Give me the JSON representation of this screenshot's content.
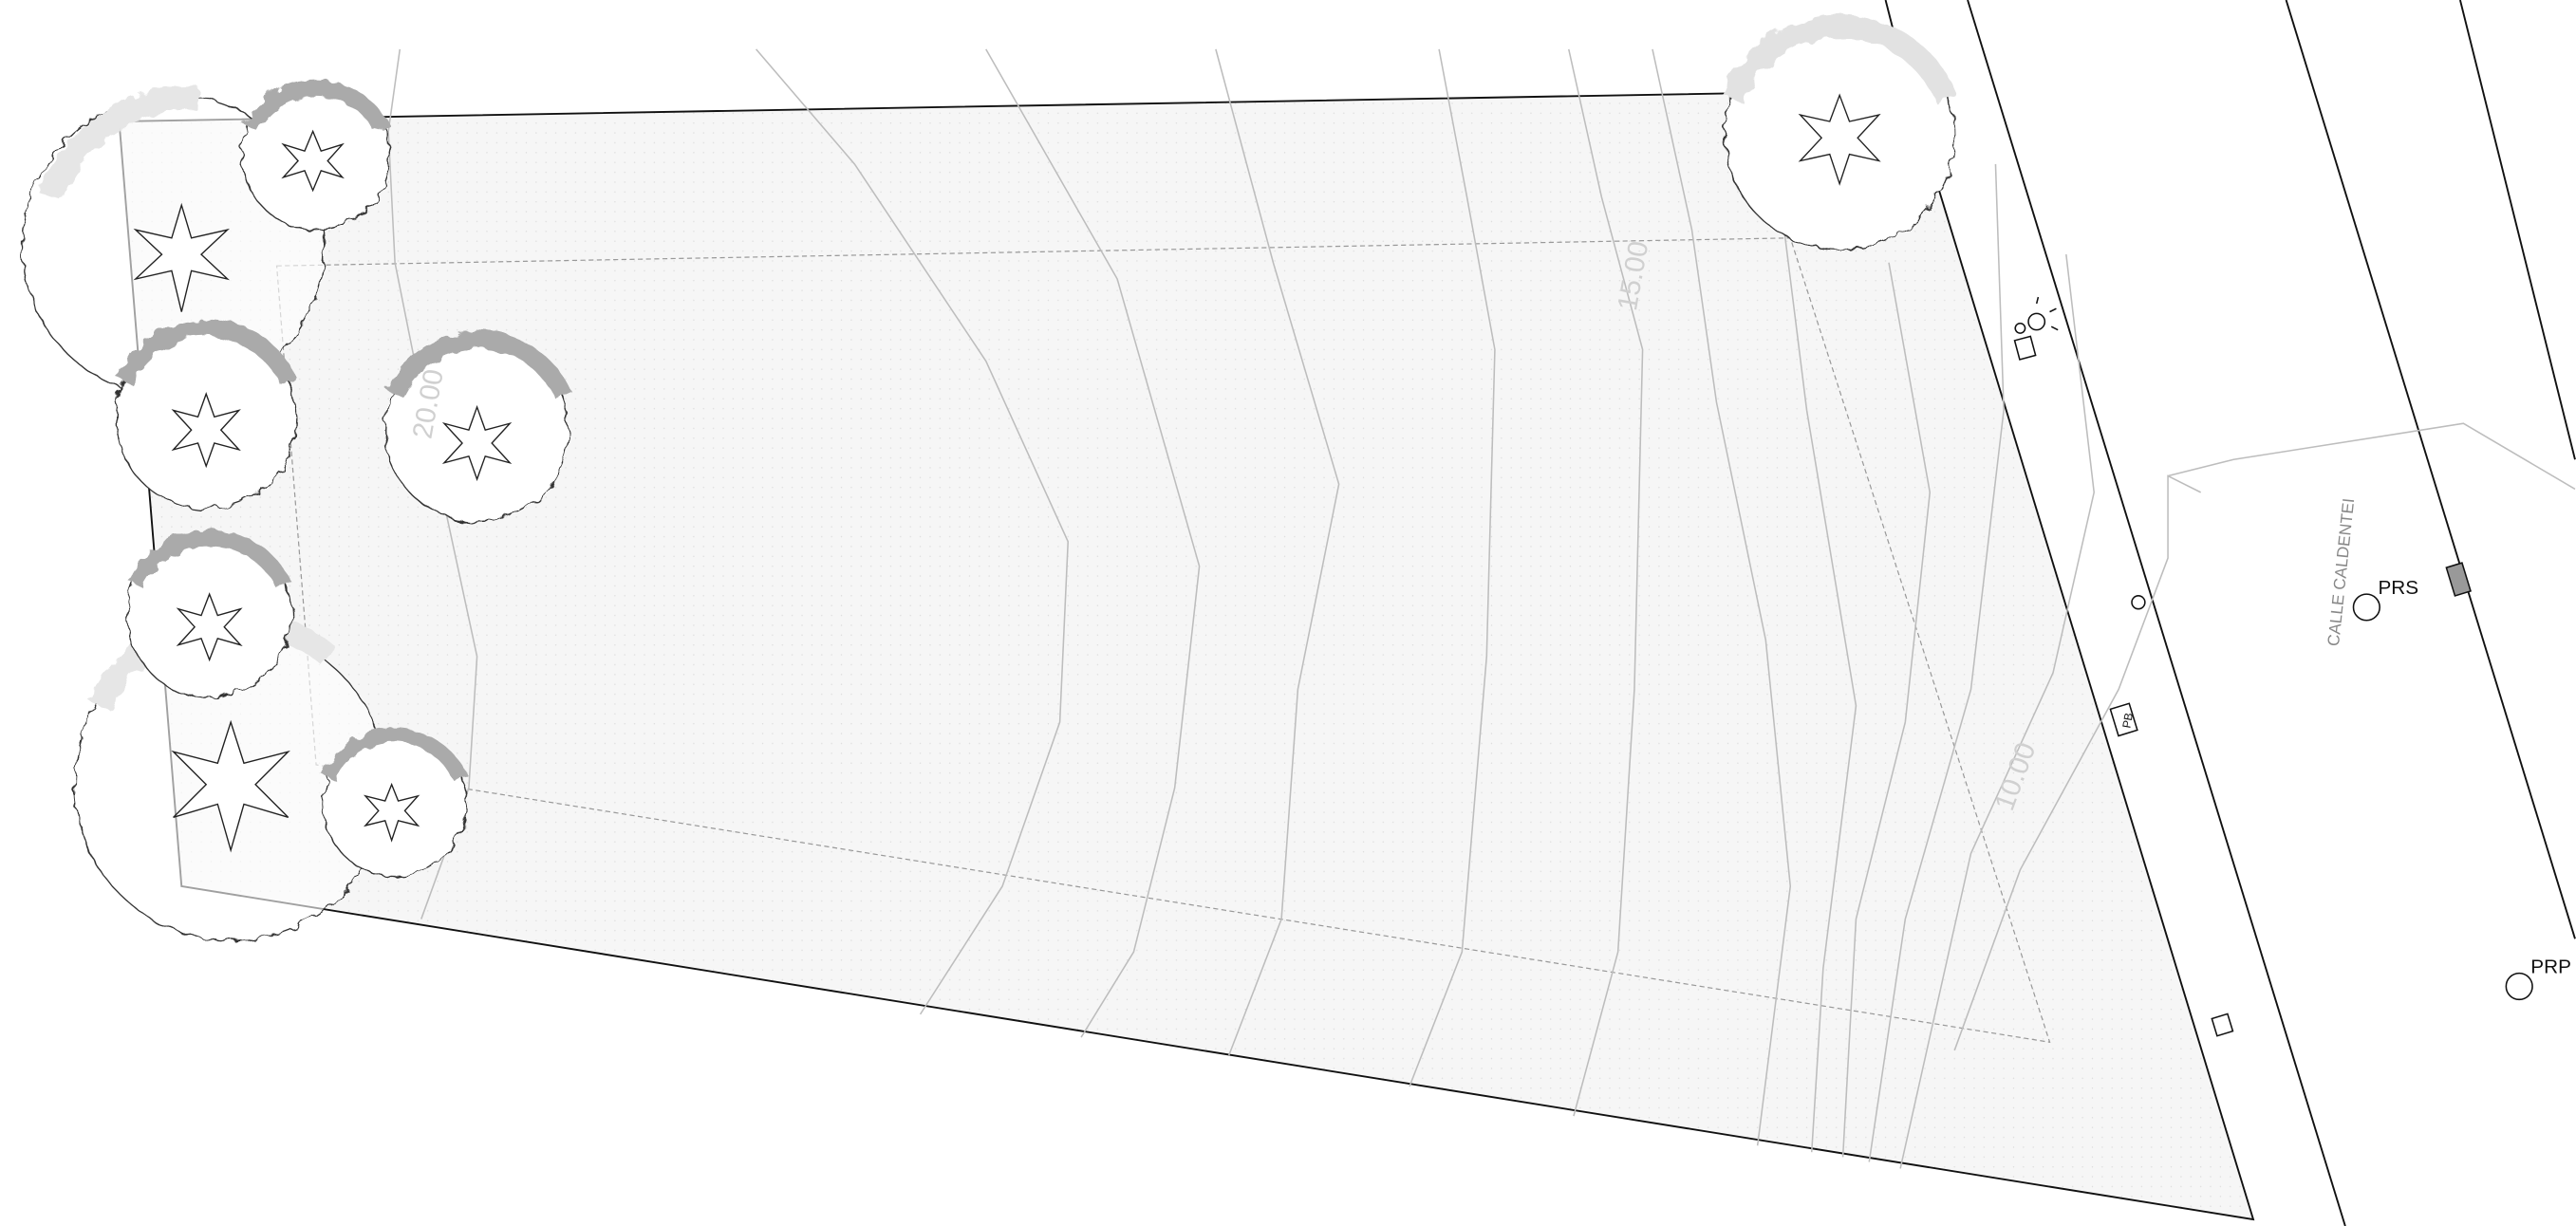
{
  "contour_labels": [
    "20.00",
    "15.00",
    "10.00"
  ],
  "street_name": "CALLE CALDENTEI",
  "markers": [
    "PRS",
    "PRP"
  ],
  "box_label": "PB"
}
